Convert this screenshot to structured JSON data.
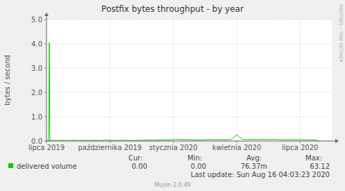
{
  "chart_data": {
    "type": "line",
    "title": "Postfix bytes throughput - by year",
    "y_label": "bytes / second",
    "watermark": "RRDTOOL / TOBI OETIKER",
    "x": [
      0,
      0.1,
      0.13,
      0.16,
      0.25,
      0.5,
      0.75,
      1,
      1.25,
      1.5,
      1.75,
      2,
      2.25,
      2.5,
      2.75,
      3,
      3.25,
      3.5,
      3.75,
      4,
      4.25,
      4.5,
      4.75,
      5,
      5.25,
      5.5,
      5.75,
      6,
      6.25,
      6.5,
      6.75,
      7,
      7.25,
      7.5,
      7.75,
      8,
      8.25,
      8.5,
      8.75,
      9,
      9.25,
      9.5,
      9.75,
      10,
      10.25,
      10.5,
      10.75,
      11,
      11.25,
      11.5,
      11.75,
      12,
      12.25,
      12.5,
      12.75,
      12.9
    ],
    "series": [
      {
        "name": "delivered volume",
        "color": "#00cc00",
        "values": [
          0.0,
          0.0,
          4.05,
          0.0,
          0.03,
          0.02,
          0.03,
          0.02,
          0.03,
          0.02,
          0.03,
          0.02,
          0.03,
          0.02,
          0.03,
          0.03,
          0.02,
          0.03,
          0.03,
          0.02,
          0.03,
          0.03,
          0.04,
          0.03,
          0.04,
          0.05,
          0.04,
          0.06,
          0.07,
          0.05,
          0.06,
          0.05,
          0.04,
          0.05,
          0.06,
          0.05,
          0.06,
          0.05,
          0.07,
          0.25,
          0.07,
          0.06,
          0.07,
          0.06,
          0.07,
          0.06,
          0.07,
          0.06,
          0.05,
          0.06,
          0.05,
          0.06,
          0.05,
          0.05,
          0.04,
          0.0
        ]
      }
    ],
    "xlim": [
      0,
      13.5
    ],
    "xticks": [
      {
        "value": 0,
        "label": "lipca 2019"
      },
      {
        "value": 3,
        "label": "października 2019"
      },
      {
        "value": 6,
        "label": "stycznia 2020"
      },
      {
        "value": 9,
        "label": "kwietnia 2020"
      },
      {
        "value": 12,
        "label": "lipca 2020"
      }
    ],
    "ylim": [
      0,
      5
    ],
    "yticks": [
      {
        "value": 0,
        "label": "0.0"
      },
      {
        "value": 1,
        "label": "1.0"
      },
      {
        "value": 2,
        "label": "2.0"
      },
      {
        "value": 3,
        "label": "3.0"
      },
      {
        "value": 4,
        "label": "4.0"
      },
      {
        "value": 5,
        "label": "5.0"
      }
    ],
    "grid": true,
    "stats": [
      {
        "label": "Cur:",
        "value": "0.00"
      },
      {
        "label": "Min:",
        "value": "0.00"
      },
      {
        "label": "Avg:",
        "value": "76.37m"
      },
      {
        "label": "Max:",
        "value": "63.12"
      }
    ],
    "last_update": "Last update: Sun Aug 16 04:03:23 2020",
    "footer": "Munin 2.0.49"
  }
}
